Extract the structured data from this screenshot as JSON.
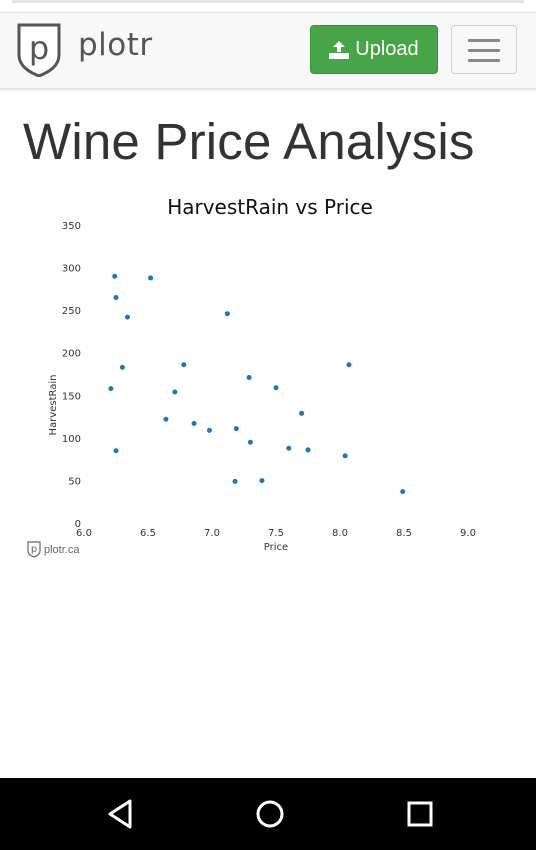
{
  "navbar": {
    "brand": "plotr",
    "upload_label": "Upload",
    "colors": {
      "upload_bg": "#47a447",
      "navbar_bg": "#f8f8f8"
    },
    "icons": [
      "plotr-shield-logo-icon",
      "upload-icon",
      "hamburger-menu-icon"
    ]
  },
  "page": {
    "title": "Wine Price Analysis"
  },
  "chart_data": {
    "type": "scatter",
    "title": "HarvestRain vs Price",
    "xlabel": "Price",
    "ylabel": "HarvestRain",
    "xlim": [
      6.0,
      9.0
    ],
    "ylim": [
      0,
      350
    ],
    "xticks": [
      "6.0",
      "6.5",
      "7.0",
      "7.5",
      "8.0",
      "8.5",
      "9.0"
    ],
    "yticks": [
      "0",
      "50",
      "100",
      "150",
      "200",
      "250",
      "300",
      "350"
    ],
    "grid": false,
    "point_color": "#1f77b4",
    "points": [
      {
        "x": 6.24,
        "y": 291
      },
      {
        "x": 6.52,
        "y": 289
      },
      {
        "x": 6.25,
        "y": 266
      },
      {
        "x": 6.34,
        "y": 243
      },
      {
        "x": 7.12,
        "y": 247
      },
      {
        "x": 6.3,
        "y": 184
      },
      {
        "x": 6.78,
        "y": 187
      },
      {
        "x": 8.07,
        "y": 187
      },
      {
        "x": 6.21,
        "y": 159
      },
      {
        "x": 6.71,
        "y": 155
      },
      {
        "x": 7.29,
        "y": 172
      },
      {
        "x": 7.5,
        "y": 160
      },
      {
        "x": 7.7,
        "y": 130
      },
      {
        "x": 6.64,
        "y": 123
      },
      {
        "x": 6.86,
        "y": 118
      },
      {
        "x": 6.98,
        "y": 110
      },
      {
        "x": 7.19,
        "y": 112
      },
      {
        "x": 7.3,
        "y": 96
      },
      {
        "x": 6.25,
        "y": 86
      },
      {
        "x": 7.6,
        "y": 89
      },
      {
        "x": 7.75,
        "y": 87
      },
      {
        "x": 8.04,
        "y": 80
      },
      {
        "x": 7.18,
        "y": 50
      },
      {
        "x": 7.39,
        "y": 51
      },
      {
        "x": 8.49,
        "y": 38
      }
    ]
  },
  "watermark": {
    "text": "plotr.ca"
  },
  "android_nav": {
    "icons": [
      "back-icon",
      "home-icon",
      "recents-icon"
    ]
  }
}
